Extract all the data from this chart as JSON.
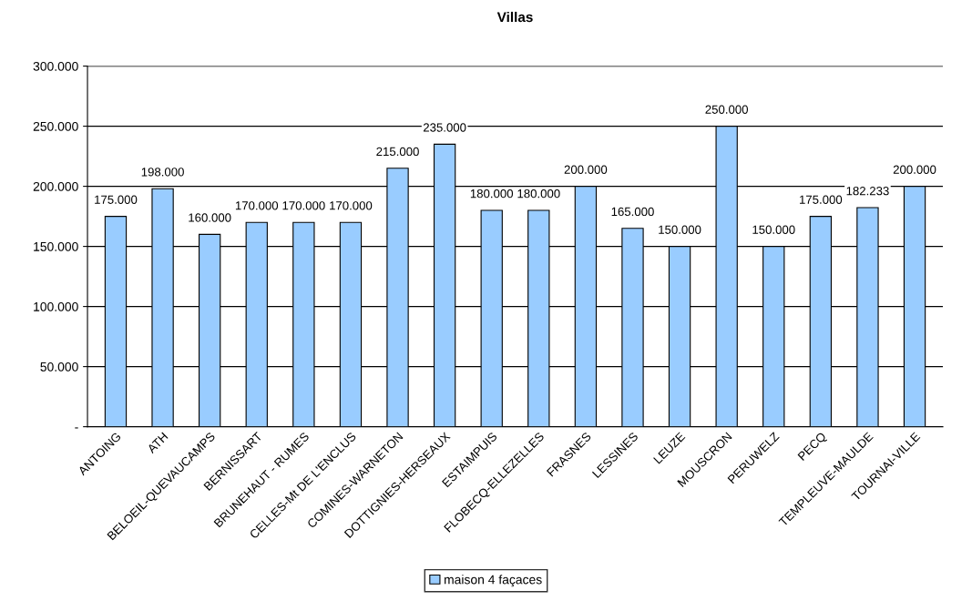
{
  "chart_data": {
    "type": "bar",
    "title": "Villas",
    "categories": [
      "ANTOING",
      "ATH",
      "BELOEIL-QUEVAUCAMPS",
      "BERNISSART",
      "BRUNEHAUT - RUMES",
      "CELLES-Mt DE L'ENCLUS",
      "COMINES-WARNETON",
      "DOTTIGNIES-HERSEAUX",
      "ESTAIMPUIS",
      "FLOBECQ-ELLEZELLES",
      "FRASNES",
      "LESSINES",
      "LEUZE",
      "MOUSCRON",
      "PERUWELZ",
      "PECQ",
      "TEMPLEUVE-MAULDE",
      "TOURNAI-VILLE"
    ],
    "series": [
      {
        "name": "maison 4 façaces",
        "color": "#99ccff",
        "values": [
          175000,
          198000,
          160000,
          170000,
          170000,
          170000,
          215000,
          235000,
          180000,
          180000,
          200000,
          165000,
          150000,
          250000,
          150000,
          175000,
          182233,
          200000
        ],
        "value_labels": [
          "175.000",
          "198.000",
          "160.000",
          "170.000",
          "170.000",
          "170.000",
          "215.000",
          "235.000",
          "180.000",
          "180.000",
          "200.000",
          "165.000",
          "150.000",
          "250.000",
          "150.000",
          "175.000",
          "182.233",
          "200.000"
        ]
      }
    ],
    "ylim": [
      0,
      300000
    ],
    "yticks": [
      {
        "value": 0,
        "label": "-"
      },
      {
        "value": 50000,
        "label": "50.000"
      },
      {
        "value": 100000,
        "label": "100.000"
      },
      {
        "value": 150000,
        "label": "150.000"
      },
      {
        "value": 200000,
        "label": "200.000"
      },
      {
        "value": 250000,
        "label": "250.000"
      },
      {
        "value": 300000,
        "label": "300.000"
      }
    ],
    "grid": "y",
    "legend": "bottom"
  }
}
